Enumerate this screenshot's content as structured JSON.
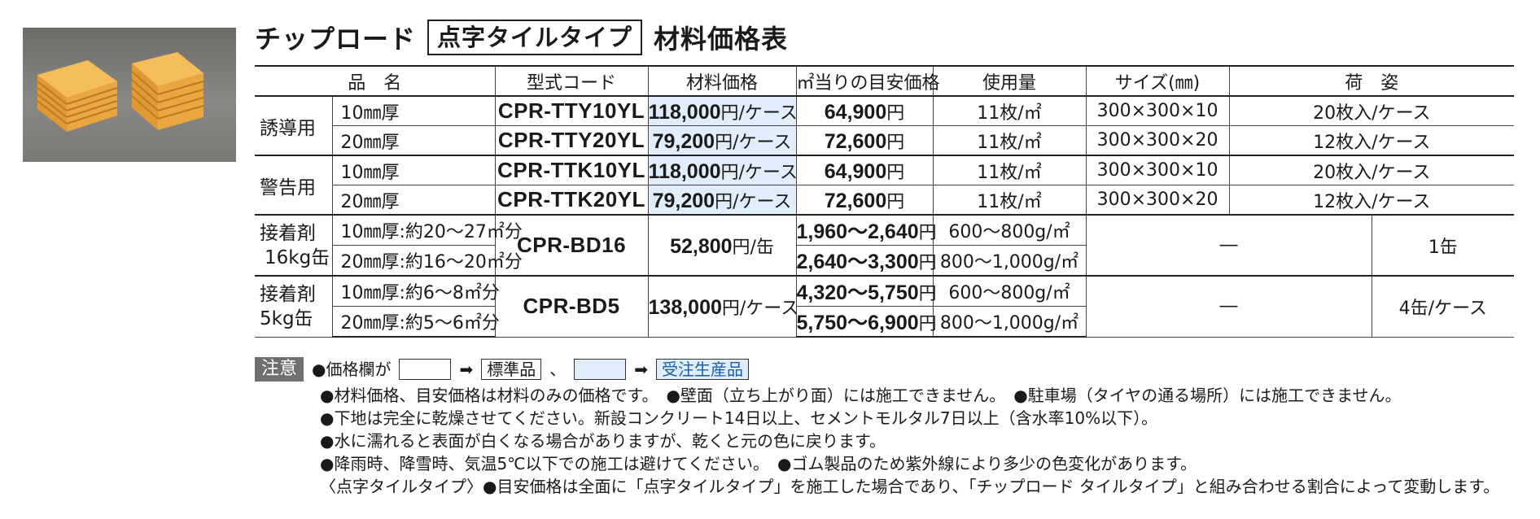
{
  "title": {
    "main": "チップロード",
    "boxed": "点字タイルタイプ",
    "suffix": "材料価格表"
  },
  "photo": {
    "alt": "product photo of yellow tactile tiles",
    "colors": [
      "#e9a23a",
      "#f4bd5a"
    ]
  },
  "headers": [
    "品　名",
    "型式コード",
    "材料価格",
    "㎡当りの目安価格",
    "使用量",
    "サイズ(㎜)",
    "荷　姿"
  ],
  "rows": {
    "r1": {
      "group": "誘導用",
      "sub": "10㎜厚",
      "code": "CPR-TTY10YL",
      "price_num": "118,000",
      "price_unit": "円/ケース",
      "per_m2_num": "64,900",
      "per_m2_unit": "円",
      "usage": "11枚/㎡",
      "size": "300×300×10",
      "pack": "20枚入/ケース"
    },
    "r2": {
      "sub": "20㎜厚",
      "code": "CPR-TTY20YL",
      "price_num": "79,200",
      "price_unit": "円/ケース",
      "per_m2_num": "72,600",
      "per_m2_unit": "円",
      "usage": "11枚/㎡",
      "size": "300×300×20",
      "pack": "12枚入/ケース"
    },
    "r3": {
      "group": "警告用",
      "sub": "10㎜厚",
      "code": "CPR-TTK10YL",
      "price_num": "118,000",
      "price_unit": "円/ケース",
      "per_m2_num": "64,900",
      "per_m2_unit": "円",
      "usage": "11枚/㎡",
      "size": "300×300×10",
      "pack": "20枚入/ケース"
    },
    "r4": {
      "sub": "20㎜厚",
      "code": "CPR-TTK20YL",
      "price_num": "79,200",
      "price_unit": "円/ケース",
      "per_m2_num": "72,600",
      "per_m2_unit": "円",
      "usage": "11枚/㎡",
      "size": "300×300×20",
      "pack": "12枚入/ケース"
    },
    "r5": {
      "group_line1": "接着剤",
      "group_line2": "16kg缶",
      "sub": "10㎜厚:約20～27㎡分",
      "code": "CPR-BD16",
      "price_num": "52,800",
      "price_unit": "円/缶",
      "per_m2_num": "1,960～2,640",
      "per_m2_unit": "円",
      "usage": "600～800g/㎡",
      "size": "―",
      "pack": "1缶"
    },
    "r6": {
      "sub": "20㎜厚:約16～20㎡分",
      "per_m2_num": "2,640～3,300",
      "per_m2_unit": "円",
      "usage": "800～1,000g/㎡"
    },
    "r7": {
      "group_line1": "接着剤",
      "group_line2": "5kg缶",
      "sub": "10㎜厚:約6～8㎡分",
      "code": "CPR-BD5",
      "price_num": "138,000",
      "price_unit": "円/ケース",
      "per_m2_num": "4,320～5,750",
      "per_m2_unit": "円",
      "usage": "600～800g/㎡",
      "size": "―",
      "pack": "4缶/ケース"
    },
    "r8": {
      "sub": "20㎜厚:約5～6㎡分",
      "per_m2_num": "5,750～6,900",
      "per_m2_unit": "円",
      "usage": "800～1,000g/㎡"
    }
  },
  "notes": {
    "badge": "注意",
    "legend_prefix": "●価格欄が",
    "arrow": "➡",
    "standard": "標準品",
    "comma": "、",
    "order": "受注生産品",
    "line1": "●材料価格、目安価格は材料のみの価格です。　●壁面（立ち上がり面）には施工できません。　●駐車場（タイヤの通る場所）には施工できません。",
    "line2": "●下地は完全に乾燥させてください。新設コンクリート14日以上、セメントモルタル7日以上（含水率10%以下）。",
    "line3": "●水に濡れると表面が白くなる場合がありますが、乾くと元の色に戻ります。",
    "line4": "●降雨時、降雪時、気温5℃以下での施工は避けてください。　●ゴム製品のため紫外線により多少の色変化があります。",
    "line5": "〈点字タイルタイプ〉●目安価格は全面に「点字タイルタイプ」を施工した場合であり、「チップロード タイルタイプ」と組み合わせる割合によって変動します。"
  }
}
